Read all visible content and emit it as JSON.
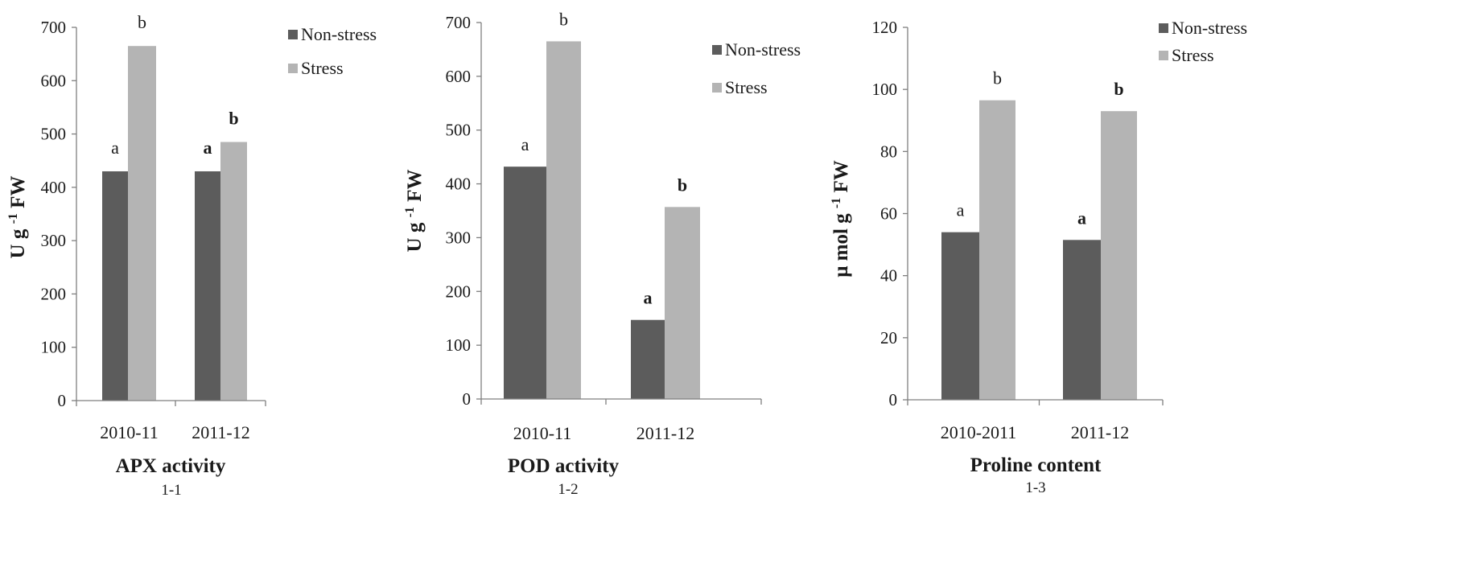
{
  "colors": {
    "non_stress": "#5c5c5c",
    "stress": "#b4b4b4",
    "axis": "#7f7f7f"
  },
  "chart_data": [
    {
      "type": "bar",
      "categories": [
        "2010-11",
        "2011-12"
      ],
      "series": [
        {
          "name": "Non-stress",
          "values": [
            430,
            430
          ]
        },
        {
          "name": "Stress",
          "values": [
            665,
            485
          ]
        }
      ],
      "letters": [
        [
          "a",
          "b"
        ],
        [
          "a",
          "b"
        ]
      ],
      "letters_bold": [
        false,
        true
      ],
      "title": "APX activity",
      "xlabel": "APX activity",
      "ylabel": "U g -1 FW",
      "ylim": [
        0,
        700
      ],
      "yticks": [
        0,
        100,
        200,
        300,
        400,
        500,
        600,
        700
      ],
      "subcaption": "1-1",
      "legend": "right",
      "grid": false
    },
    {
      "type": "bar",
      "categories": [
        "2010-11",
        "2011-12"
      ],
      "series": [
        {
          "name": "Non-stress",
          "values": [
            432,
            147
          ]
        },
        {
          "name": "Stress",
          "values": [
            665,
            357
          ]
        }
      ],
      "letters": [
        [
          "a",
          "b"
        ],
        [
          "a",
          "b"
        ]
      ],
      "letters_bold": [
        false,
        true
      ],
      "title": "POD activity",
      "xlabel": "POD activity",
      "ylabel": "U g -1 FW",
      "ylim": [
        0,
        700
      ],
      "yticks": [
        0,
        100,
        200,
        300,
        400,
        500,
        600,
        700
      ],
      "subcaption": "1-2",
      "legend": "top-right",
      "grid": false
    },
    {
      "type": "bar",
      "categories": [
        "2010-2011",
        "2011-12"
      ],
      "series": [
        {
          "name": "Non-stress",
          "values": [
            54,
            51.5
          ]
        },
        {
          "name": "Stress",
          "values": [
            96.5,
            93
          ]
        }
      ],
      "letters": [
        [
          "a",
          "b"
        ],
        [
          "a",
          "b"
        ]
      ],
      "letters_bold": [
        false,
        true
      ],
      "title": "Proline content",
      "xlabel": "Proline content",
      "ylabel": "μ mol g -1 FW",
      "ylim": [
        0,
        120
      ],
      "yticks": [
        0,
        20,
        40,
        60,
        80,
        100,
        120
      ],
      "subcaption": "1-3",
      "legend": "top-right",
      "grid": false
    }
  ]
}
